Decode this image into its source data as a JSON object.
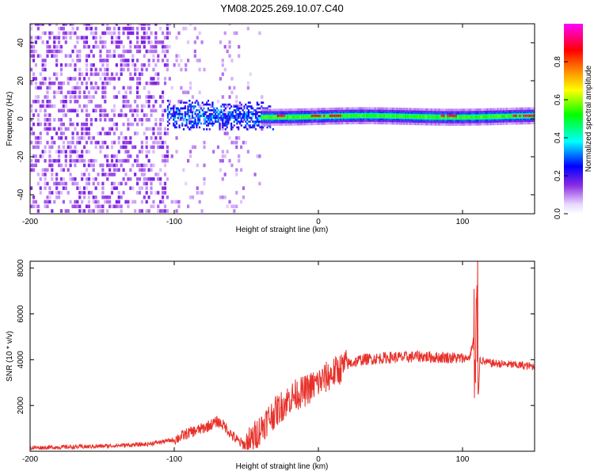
{
  "chart_data": [
    {
      "type": "heatmap",
      "title": "YM08.2025.269.10.07.C40",
      "xlabel": "Height of straight line (km)",
      "ylabel": "Frequency (Hz)",
      "xlim": [
        -200,
        150
      ],
      "ylim": [
        -50,
        50
      ],
      "x_ticks": [
        -200,
        -100,
        0,
        100
      ],
      "x_tick_labels": [
        "-200",
        "-100",
        "0",
        "100"
      ],
      "y_ticks": [
        -40,
        -20,
        0,
        20,
        40
      ],
      "y_tick_labels": [
        "-40",
        "-20",
        "0",
        "20",
        "40"
      ],
      "colorbar": {
        "label": "Normalized spectral amplitude",
        "range": [
          0.0,
          1.0
        ],
        "ticks": [
          0.0,
          0.2,
          0.4,
          0.6,
          0.8
        ],
        "tick_labels": [
          "0.0",
          "0.2",
          "0.4",
          "0.6",
          "0.8"
        ],
        "colormap": [
          "#ffffff",
          "#e2c8ff",
          "#8a2be2",
          "#0000ff",
          "#00ffff",
          "#00ff00",
          "#ffff00",
          "#ff8000",
          "#ff0000",
          "#ff00ff"
        ]
      },
      "description_regions": [
        {
          "x_range": [
            -200,
            -105
          ],
          "freq_range": [
            -50,
            50
          ],
          "amplitude": 0.1
        },
        {
          "x_range": [
            -105,
            -50
          ],
          "freq_range": [
            -5,
            10
          ],
          "amplitude": 0.35
        },
        {
          "x_range": [
            -40,
            150
          ],
          "freq_range": [
            -1,
            3
          ],
          "amplitude": 0.55
        }
      ]
    },
    {
      "type": "line",
      "xlabel": "Height of straight line (km)",
      "ylabel": "SNR (10 * v/v)",
      "xlim": [
        -200,
        150
      ],
      "ylim": [
        0,
        8300
      ],
      "x_ticks": [
        -200,
        -100,
        0,
        100
      ],
      "x_tick_labels": [
        "-200",
        "-100",
        "0",
        "100"
      ],
      "y_ticks": [
        2000,
        4000,
        6000,
        8000
      ],
      "y_tick_labels": [
        "2000",
        "4000",
        "6000",
        "8000"
      ],
      "line_color": "#e8302a",
      "series": [
        {
          "name": "SNR",
          "x": [
            -200,
            -180,
            -160,
            -140,
            -120,
            -100,
            -90,
            -80,
            -70,
            -65,
            -60,
            -55,
            -50,
            -45,
            -40,
            -35,
            -30,
            -25,
            -20,
            -15,
            -10,
            -5,
            0,
            5,
            10,
            15,
            20,
            25,
            30,
            40,
            50,
            60,
            70,
            80,
            90,
            100,
            105,
            108,
            110,
            112,
            115,
            120,
            130,
            140,
            150
          ],
          "values": [
            150,
            180,
            200,
            250,
            300,
            500,
            800,
            1000,
            1300,
            1100,
            700,
            400,
            250,
            600,
            1000,
            1400,
            1700,
            2000,
            2300,
            2500,
            2600,
            2800,
            3000,
            3200,
            3400,
            3600,
            3800,
            3900,
            4000,
            4050,
            4100,
            4100,
            4150,
            4100,
            4100,
            4050,
            4100,
            5000,
            1000,
            4000,
            3900,
            3850,
            3800,
            3750,
            3700
          ]
        }
      ]
    }
  ]
}
